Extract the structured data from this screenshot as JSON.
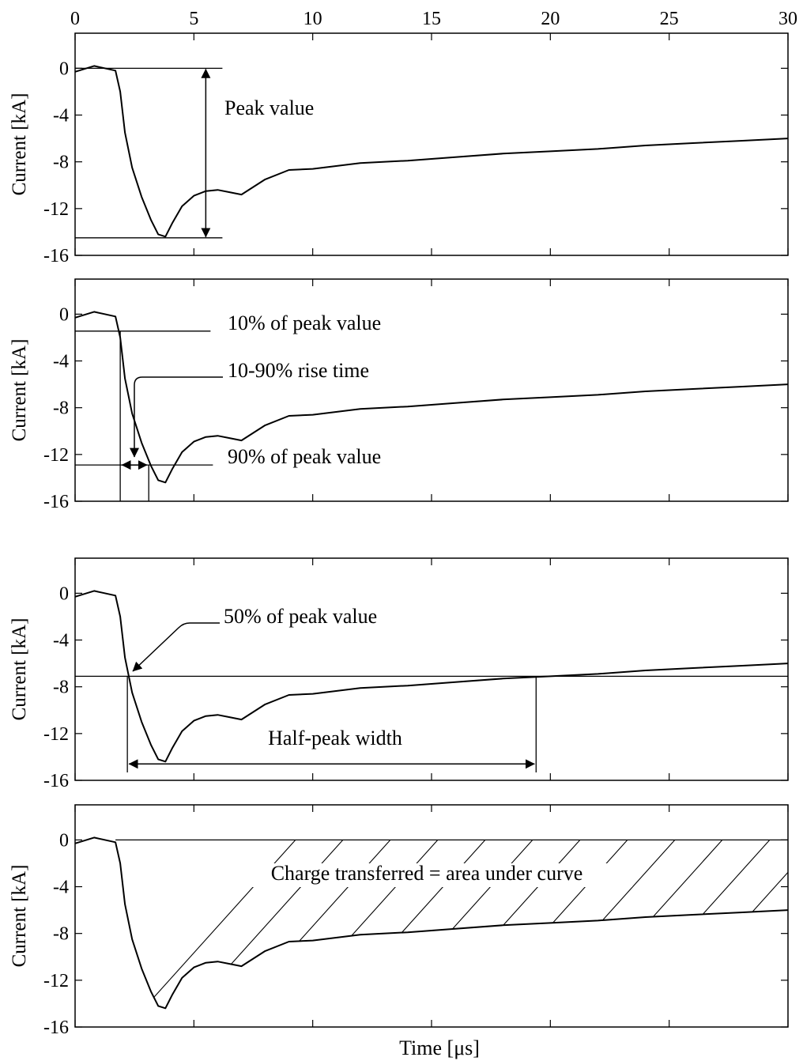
{
  "chart_data": [
    {
      "type": "line",
      "panel": 1,
      "ylabel": "Current [kA]",
      "xlim": [
        0,
        30
      ],
      "ylim": [
        -16,
        3
      ],
      "x_ticks": [
        0,
        5,
        10,
        15,
        20,
        25,
        30
      ],
      "y_ticks": [
        0,
        -4,
        -8,
        -12,
        -16
      ],
      "x_tick_labels_shown": "top",
      "series": [
        {
          "x": [
            0,
            0.8,
            1.7,
            1.9,
            2.1,
            2.4,
            2.8,
            3.2,
            3.5,
            3.8,
            4.1,
            4.5,
            5,
            5.5,
            6,
            6.5,
            7,
            8,
            9,
            10,
            12,
            14,
            16,
            18,
            20,
            22,
            24,
            26,
            28,
            30
          ],
          "y": [
            -0.3,
            0.2,
            -0.2,
            -2,
            -5.5,
            -8.5,
            -11,
            -13,
            -14.2,
            -14.4,
            -13.2,
            -11.8,
            -10.9,
            -10.5,
            -10.4,
            -10.6,
            -10.8,
            -9.5,
            -8.7,
            -8.6,
            -8.1,
            -7.9,
            -7.6,
            -7.3,
            -7.1,
            -6.9,
            -6.6,
            -6.4,
            -6.2,
            -6
          ]
        }
      ],
      "annotations": [
        {
          "text": "Peak value",
          "kind": "double-arrow-span",
          "y_from": 0,
          "y_to": -14.5,
          "x_arrow": 5.5,
          "x_extent": [
            0,
            6.2
          ]
        }
      ]
    },
    {
      "type": "line",
      "panel": 2,
      "ylabel": "Current [kA]",
      "xlim": [
        0,
        30
      ],
      "ylim": [
        -16,
        3
      ],
      "y_ticks": [
        0,
        -4,
        -8,
        -12,
        -16
      ],
      "series": [
        {
          "x": [
            0,
            0.8,
            1.7,
            1.9,
            2.1,
            2.4,
            2.8,
            3.2,
            3.5,
            3.8,
            4.1,
            4.5,
            5,
            5.5,
            6,
            6.5,
            7,
            8,
            9,
            10,
            12,
            14,
            16,
            18,
            20,
            22,
            24,
            26,
            28,
            30
          ],
          "y": [
            -0.3,
            0.2,
            -0.2,
            -2,
            -5.5,
            -8.5,
            -11,
            -13,
            -14.2,
            -14.4,
            -13.2,
            -11.8,
            -10.9,
            -10.5,
            -10.4,
            -10.6,
            -10.8,
            -9.5,
            -8.7,
            -8.6,
            -8.1,
            -7.9,
            -7.6,
            -7.3,
            -7.1,
            -6.9,
            -6.6,
            -6.4,
            -6.2,
            -6
          ]
        }
      ],
      "annotations": [
        {
          "text": "10% of peak value",
          "kind": "hline",
          "y": -1.45,
          "x_extent": [
            0,
            5.7
          ]
        },
        {
          "text": "10-90% rise time",
          "kind": "pointer",
          "x": 2.4,
          "y": -12.4
        },
        {
          "text": "90% of peak value",
          "kind": "hline",
          "y": -12.9,
          "x_extent": [
            0,
            5.8
          ]
        }
      ]
    },
    {
      "type": "line",
      "panel": 3,
      "ylabel": "Current [kA]",
      "xlim": [
        0,
        30
      ],
      "ylim": [
        -16,
        3
      ],
      "y_ticks": [
        0,
        -4,
        -8,
        -12,
        -16
      ],
      "series": [
        {
          "x": [
            0,
            0.8,
            1.7,
            1.9,
            2.1,
            2.4,
            2.8,
            3.2,
            3.5,
            3.8,
            4.1,
            4.5,
            5,
            5.5,
            6,
            6.5,
            7,
            8,
            9,
            10,
            12,
            14,
            16,
            18,
            20,
            22,
            24,
            26,
            28,
            30
          ],
          "y": [
            -0.3,
            0.2,
            -0.2,
            -2,
            -5.5,
            -8.5,
            -11,
            -13,
            -14.2,
            -14.4,
            -13.2,
            -11.8,
            -10.9,
            -10.5,
            -10.4,
            -10.6,
            -10.8,
            -9.5,
            -8.7,
            -8.6,
            -8.1,
            -7.9,
            -7.6,
            -7.3,
            -7.1,
            -6.9,
            -6.6,
            -6.4,
            -6.2,
            -6
          ]
        }
      ],
      "annotations": [
        {
          "text": "50% of peak value",
          "kind": "hline-pointer",
          "y": -7.1,
          "x_extent": [
            0,
            30
          ]
        },
        {
          "text": "Half-peak width",
          "kind": "double-arrow-span",
          "x_from": 2.2,
          "x_to": 19.4,
          "y": -14.6
        }
      ]
    },
    {
      "type": "area",
      "panel": 4,
      "ylabel": "Current [kA]",
      "xlabel": "Time [μs]",
      "xlim": [
        0,
        30
      ],
      "ylim": [
        -16,
        3
      ],
      "y_ticks": [
        0,
        -4,
        -8,
        -12,
        -16
      ],
      "series": [
        {
          "x": [
            0,
            0.8,
            1.7,
            1.9,
            2.1,
            2.4,
            2.8,
            3.2,
            3.5,
            3.8,
            4.1,
            4.5,
            5,
            5.5,
            6,
            6.5,
            7,
            8,
            9,
            10,
            12,
            14,
            16,
            18,
            20,
            22,
            24,
            26,
            28,
            30
          ],
          "y": [
            -0.3,
            0.2,
            -0.2,
            -2,
            -5.5,
            -8.5,
            -11,
            -13,
            -14.2,
            -14.4,
            -13.2,
            -11.8,
            -10.9,
            -10.5,
            -10.4,
            -10.6,
            -10.8,
            -9.5,
            -8.7,
            -8.6,
            -8.1,
            -7.9,
            -7.6,
            -7.3,
            -7.1,
            -6.9,
            -6.6,
            -6.4,
            -6.2,
            -6
          ]
        }
      ],
      "annotations": [
        {
          "text": "Charge transferred = area under curve",
          "kind": "hatched-area",
          "y": -4.3
        }
      ]
    }
  ]
}
